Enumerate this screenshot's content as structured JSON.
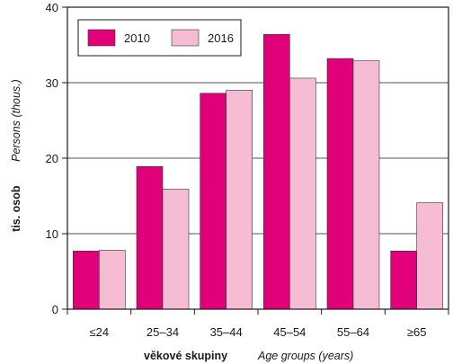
{
  "chart_data": {
    "type": "bar",
    "categories": [
      "≤24",
      "25–34",
      "35–44",
      "45–54",
      "55–64",
      "≥65"
    ],
    "series": [
      {
        "name": "2010",
        "values": [
          7.7,
          18.9,
          28.6,
          36.4,
          33.2,
          7.7
        ],
        "color": "#e0007a"
      },
      {
        "name": "2016",
        "values": [
          7.8,
          15.9,
          29.0,
          30.6,
          32.9,
          14.1
        ],
        "color": "#f5bcd3"
      }
    ],
    "ylim": [
      0,
      40
    ],
    "yticks": [
      "0",
      "10",
      "20",
      "30",
      "40"
    ],
    "ylabel_primary": "tis. osob",
    "ylabel_secondary": "Persons (thous.)",
    "xlabel_primary": "věkové skupiny",
    "xlabel_secondary": "Age groups (years)",
    "grid": true,
    "legend_position": "top-left"
  }
}
